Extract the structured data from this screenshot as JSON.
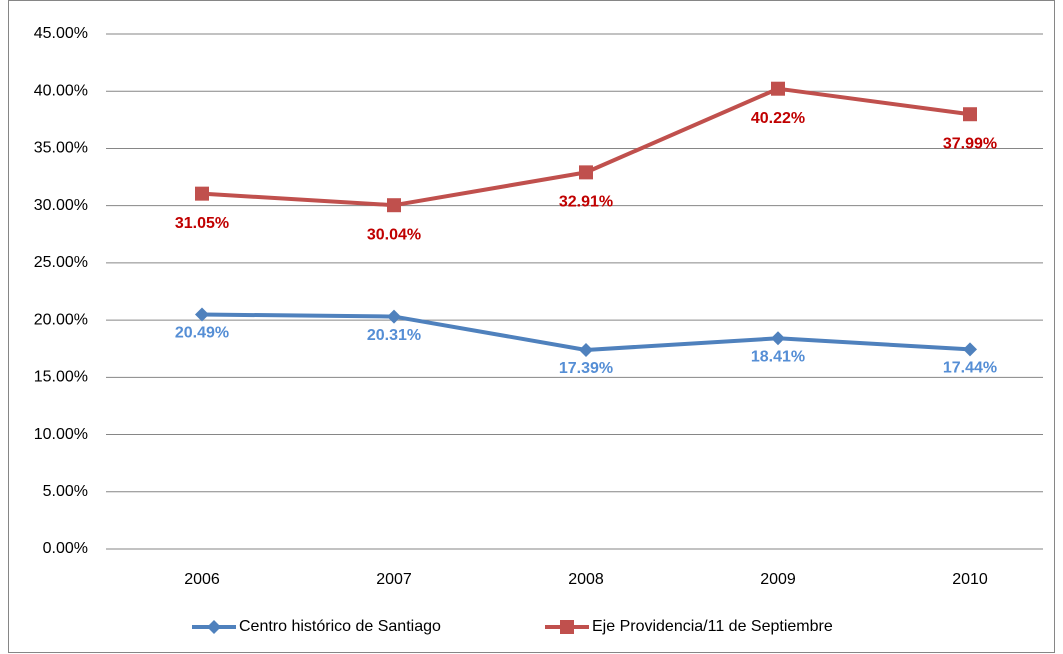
{
  "chart_data": {
    "type": "line",
    "categories": [
      "2006",
      "2007",
      "2008",
      "2009",
      "2010"
    ],
    "series": [
      {
        "name": "Centro histórico de Santiago",
        "color": "#4f81bd",
        "label_color": "#558ed5",
        "marker": "diamond",
        "values": [
          20.49,
          20.31,
          17.39,
          18.41,
          17.44
        ],
        "value_labels": [
          "20.49%",
          "20.31%",
          "17.39%",
          "18.41%",
          "17.44%"
        ]
      },
      {
        "name": "Eje Providencia/11 de Septiembre",
        "color": "#c0504d",
        "label_color": "#c00000",
        "marker": "square",
        "values": [
          31.05,
          30.04,
          32.91,
          40.22,
          37.99
        ],
        "value_labels": [
          "31.05%",
          "30.04%",
          "32.91%",
          "40.22%",
          "37.99%"
        ]
      }
    ],
    "ylim": [
      0,
      45
    ],
    "yticks": [
      {
        "value": 0,
        "label": "0.00%"
      },
      {
        "value": 5,
        "label": "5.00%"
      },
      {
        "value": 10,
        "label": "10.00%"
      },
      {
        "value": 15,
        "label": "15.00%"
      },
      {
        "value": 20,
        "label": "20.00%"
      },
      {
        "value": 25,
        "label": "25.00%"
      },
      {
        "value": 30,
        "label": "30.00%"
      },
      {
        "value": 35,
        "label": "35.00%"
      },
      {
        "value": 40,
        "label": "40.00%"
      },
      {
        "value": 45,
        "label": "45.00%"
      }
    ],
    "grid": true,
    "legend": "bottom"
  }
}
